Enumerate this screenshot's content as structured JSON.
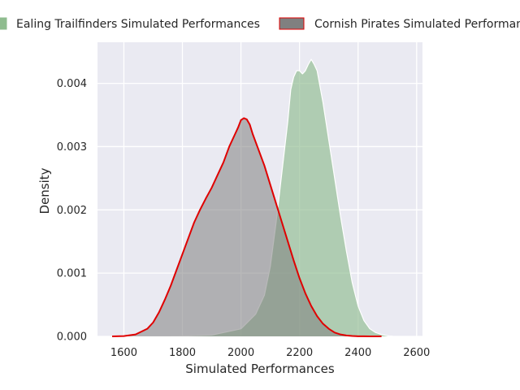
{
  "chart_data": {
    "type": "area",
    "xlabel": "Simulated Performances",
    "ylabel": "Density",
    "xlim": [
      1510,
      2620
    ],
    "ylim": [
      0,
      0.00465
    ],
    "x_ticks": [
      1600,
      1800,
      2000,
      2200,
      2400,
      2600
    ],
    "x_tick_labels": [
      "1600",
      "1800",
      "2000",
      "2200",
      "2400",
      "2600"
    ],
    "y_ticks": [
      0,
      0.001,
      0.002,
      0.003,
      0.004
    ],
    "y_tick_labels": [
      "0.000",
      "0.001",
      "0.002",
      "0.003",
      "0.004"
    ],
    "grid": true,
    "legend_placement": "top, outside plot",
    "series": [
      {
        "name": "Ealing Trailfinders Simulated Performances",
        "fill": "#8fbc8f",
        "fill_opacity": 0.65,
        "line": "#ffffff",
        "x": [
          1760,
          1900,
          2000,
          2050,
          2080,
          2100,
          2120,
          2140,
          2160,
          2170,
          2180,
          2190,
          2200,
          2210,
          2220,
          2230,
          2240,
          2250,
          2260,
          2280,
          2300,
          2320,
          2340,
          2360,
          2380,
          2400,
          2420,
          2440,
          2460,
          2480,
          2500,
          2520
        ],
        "y": [
          0.0,
          2e-05,
          0.00012,
          0.00035,
          0.00065,
          0.0011,
          0.0018,
          0.0026,
          0.0034,
          0.0039,
          0.0041,
          0.0042,
          0.0042,
          0.00415,
          0.0042,
          0.0043,
          0.00438,
          0.0043,
          0.0042,
          0.0037,
          0.0031,
          0.0025,
          0.0019,
          0.00135,
          0.00085,
          0.00048,
          0.00025,
          0.00012,
          6e-05,
          3e-05,
          1e-05,
          0.0
        ]
      },
      {
        "name": "Cornish Pirates Simulated Performances",
        "fill": "#808080",
        "fill_opacity": 0.55,
        "line": "#e00000",
        "x": [
          1560,
          1600,
          1640,
          1680,
          1700,
          1720,
          1740,
          1760,
          1780,
          1800,
          1820,
          1840,
          1860,
          1880,
          1900,
          1920,
          1940,
          1960,
          1980,
          1990,
          2000,
          2010,
          2020,
          2030,
          2040,
          2060,
          2080,
          2100,
          2120,
          2140,
          2160,
          2180,
          2200,
          2220,
          2240,
          2260,
          2280,
          2300,
          2320,
          2340,
          2360,
          2380,
          2400,
          2420,
          2440,
          2460,
          2480
        ],
        "y": [
          0.0,
          5e-06,
          3e-05,
          0.00012,
          0.00022,
          0.00038,
          0.00058,
          0.0008,
          0.00105,
          0.0013,
          0.00155,
          0.0018,
          0.002,
          0.00218,
          0.00235,
          0.00255,
          0.00275,
          0.003,
          0.0032,
          0.0033,
          0.00342,
          0.00345,
          0.00343,
          0.00335,
          0.0032,
          0.00295,
          0.0027,
          0.0024,
          0.0021,
          0.0018,
          0.0015,
          0.0012,
          0.00092,
          0.00068,
          0.00048,
          0.00032,
          0.0002,
          0.00012,
          6e-05,
          3e-05,
          1.5e-05,
          6e-06,
          2e-06,
          1e-06,
          5e-07,
          2e-07,
          0.0
        ]
      }
    ]
  }
}
